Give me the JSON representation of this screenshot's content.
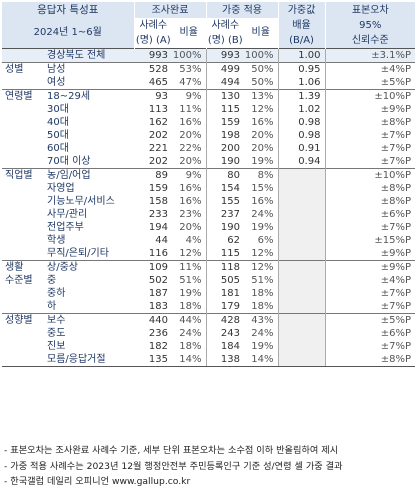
{
  "header": {
    "title": "응답자 특성표",
    "period": "2024년 1~6월",
    "survey_done": "조사완료",
    "weighted": "가중 적용",
    "weight_ratio": "가중값",
    "weight_ratio_2": "배율",
    "weight_ratio_3": "(B/A)",
    "std_error": "표본오차",
    "std_error_2": "95%",
    "std_error_3": "신뢰수준",
    "cases_a": "사례수",
    "cases_a_2": "(명) (A)",
    "ratio": "비율",
    "cases_b": "사례수",
    "cases_b_2": "(명) (B)",
    "ratio_b": "비율"
  },
  "rows": [
    {
      "group": "",
      "cat": "경상북도 전체",
      "n1": "993",
      "p1": "100%",
      "n2": "993",
      "p2": "100%",
      "w": "1.00",
      "ci": "±3.1%P"
    },
    {
      "group": "성별",
      "cat": "남성",
      "n1": "528",
      "p1": "53%",
      "n2": "499",
      "p2": "50%",
      "w": "0.95",
      "ci": "±4%P"
    },
    {
      "group": "",
      "cat": "여성",
      "n1": "465",
      "p1": "47%",
      "n2": "494",
      "p2": "50%",
      "w": "1.06",
      "ci": "±5%P"
    },
    {
      "group": "연령별",
      "cat": "18~29세",
      "n1": "93",
      "p1": "9%",
      "n2": "130",
      "p2": "13%",
      "w": "1.39",
      "ci": "±10%P"
    },
    {
      "group": "",
      "cat": "30대",
      "n1": "113",
      "p1": "11%",
      "n2": "115",
      "p2": "12%",
      "w": "1.02",
      "ci": "±9%P"
    },
    {
      "group": "",
      "cat": "40대",
      "n1": "162",
      "p1": "16%",
      "n2": "159",
      "p2": "16%",
      "w": "0.98",
      "ci": "±8%P"
    },
    {
      "group": "",
      "cat": "50대",
      "n1": "202",
      "p1": "20%",
      "n2": "198",
      "p2": "20%",
      "w": "0.98",
      "ci": "±7%P"
    },
    {
      "group": "",
      "cat": "60대",
      "n1": "221",
      "p1": "22%",
      "n2": "200",
      "p2": "20%",
      "w": "0.91",
      "ci": "±7%P"
    },
    {
      "group": "",
      "cat": "70대 이상",
      "n1": "202",
      "p1": "20%",
      "n2": "190",
      "p2": "19%",
      "w": "0.94",
      "ci": "±7%P"
    },
    {
      "group": "직업별",
      "cat": "농/임/어업",
      "n1": "89",
      "p1": "9%",
      "n2": "80",
      "p2": "8%",
      "w": "",
      "ci": "±10%P"
    },
    {
      "group": "",
      "cat": "자영업",
      "n1": "159",
      "p1": "16%",
      "n2": "154",
      "p2": "15%",
      "w": "",
      "ci": "±8%P"
    },
    {
      "group": "",
      "cat": "기능노무/서비스",
      "n1": "158",
      "p1": "16%",
      "n2": "155",
      "p2": "16%",
      "w": "",
      "ci": "±8%P"
    },
    {
      "group": "",
      "cat": "사무/관리",
      "n1": "233",
      "p1": "23%",
      "n2": "237",
      "p2": "24%",
      "w": "",
      "ci": "±6%P"
    },
    {
      "group": "",
      "cat": "전업주부",
      "n1": "194",
      "p1": "20%",
      "n2": "190",
      "p2": "19%",
      "w": "",
      "ci": "±7%P"
    },
    {
      "group": "",
      "cat": "학생",
      "n1": "44",
      "p1": "4%",
      "n2": "62",
      "p2": "6%",
      "w": "",
      "ci": "±15%P"
    },
    {
      "group": "",
      "cat": "무직/은퇴/기타",
      "n1": "116",
      "p1": "12%",
      "n2": "115",
      "p2": "12%",
      "w": "",
      "ci": "±9%P"
    },
    {
      "group": "생활",
      "cat": "상/중상",
      "n1": "109",
      "p1": "11%",
      "n2": "118",
      "p2": "12%",
      "w": "",
      "ci": "±9%P"
    },
    {
      "group": "수준별",
      "cat": "중",
      "n1": "502",
      "p1": "51%",
      "n2": "505",
      "p2": "51%",
      "w": "",
      "ci": "±4%P"
    },
    {
      "group": "",
      "cat": "중하",
      "n1": "187",
      "p1": "19%",
      "n2": "181",
      "p2": "18%",
      "w": "",
      "ci": "±7%P"
    },
    {
      "group": "",
      "cat": "하",
      "n1": "183",
      "p1": "18%",
      "n2": "179",
      "p2": "18%",
      "w": "",
      "ci": "±7%P"
    },
    {
      "group": "성향별",
      "cat": "보수",
      "n1": "440",
      "p1": "44%",
      "n2": "428",
      "p2": "43%",
      "w": "",
      "ci": "±5%P"
    },
    {
      "group": "",
      "cat": "중도",
      "n1": "236",
      "p1": "24%",
      "n2": "243",
      "p2": "24%",
      "w": "",
      "ci": "±6%P"
    },
    {
      "group": "",
      "cat": "진보",
      "n1": "182",
      "p1": "18%",
      "n2": "184",
      "p2": "19%",
      "w": "",
      "ci": "±7%P"
    },
    {
      "group": "",
      "cat": "모름/응답거절",
      "n1": "135",
      "p1": "14%",
      "n2": "138",
      "p2": "14%",
      "w": "",
      "ci": "±8%P"
    }
  ],
  "notes": [
    "- 표본오차는 조사완료 사례수 기준, 세부 단위 표본오차는 소수점 이하 반올림하여 제시",
    "- 가중 적용 사례수는 2023년 12월 행정안전부 주민등록인구 기준 성/연령 셀 가중 결과",
    "- 한국갤럽 데일리 오피니언 www.gallup.co.kr"
  ]
}
